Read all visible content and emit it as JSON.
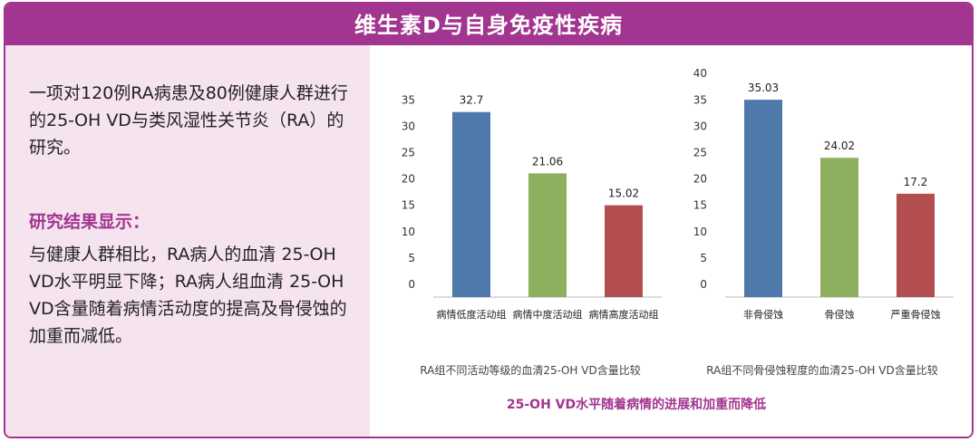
{
  "header": {
    "title": "维生素D与自身免疫性疾病"
  },
  "left": {
    "intro": "一项对120例RA病患及80例健康人群进行的25-OH VD与类风湿性关节炎（RA）的研究。",
    "results_title": "研究结果显示：",
    "results_text": "与健康人群相比，RA病人的血清 25-OH VD水平明显下降；RA病人组血清 25-OH VD含量随着病情活动度的提高及骨侵蚀的加重而减低。"
  },
  "chart_data": [
    {
      "type": "bar",
      "title": "RA组不同活动等级的血清25-OH VD含量比较",
      "categories": [
        "病情低度活动组",
        "病情中度活动组",
        "病情高度活动组"
      ],
      "values": [
        32.7,
        21.06,
        15.02
      ],
      "value_labels": [
        "32.7",
        "21.06",
        "15.02"
      ],
      "colors": [
        "#4f79aa",
        "#8eaf5e",
        "#b24e50"
      ],
      "ylim": [
        0,
        35
      ],
      "yticks": [
        0,
        5,
        10,
        15,
        20,
        25,
        30,
        35
      ],
      "grid": false
    },
    {
      "type": "bar",
      "title": "RA组不同骨侵蚀程度的血清25-OH VD含量比较",
      "categories": [
        "非骨侵蚀",
        "骨侵蚀",
        "严重骨侵蚀"
      ],
      "values": [
        35.03,
        24.02,
        17.2
      ],
      "value_labels": [
        "35.03",
        "24.02",
        "17.2"
      ],
      "colors": [
        "#4f79aa",
        "#8eaf5e",
        "#b24e50"
      ],
      "ylim": [
        0,
        40
      ],
      "yticks": [
        0,
        5,
        10,
        15,
        20,
        25,
        30,
        35,
        40
      ],
      "grid": false
    }
  ],
  "footer": {
    "caption": "25-OH VD水平随着病情的进展和加重而降低"
  }
}
